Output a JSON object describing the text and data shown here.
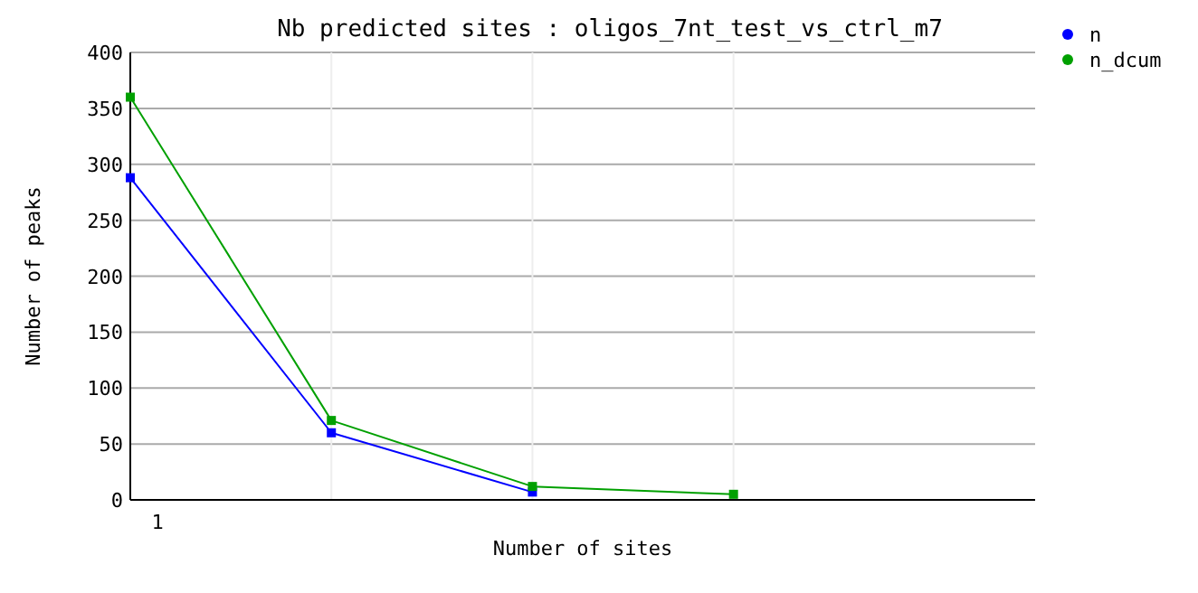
{
  "chart_data": {
    "type": "line",
    "title": "Nb predicted sites : oligos_7nt_test_vs_ctrl_m7",
    "xlabel": "Number of sites",
    "ylabel": "Number of peaks",
    "categories": [
      "1",
      null,
      null,
      null
    ],
    "series": [
      {
        "name": "n",
        "color": "#0000ff",
        "values": [
          288,
          60,
          7,
          null
        ]
      },
      {
        "name": "n_dcum",
        "color": "#00a000",
        "values": [
          360,
          71,
          12,
          5
        ]
      }
    ],
    "ylim": [
      0,
      400
    ],
    "yticks": [
      0,
      50,
      100,
      150,
      200,
      250,
      300,
      350,
      400
    ],
    "grid": true,
    "legend": "top right",
    "marker": "square",
    "line_style": "solid"
  }
}
